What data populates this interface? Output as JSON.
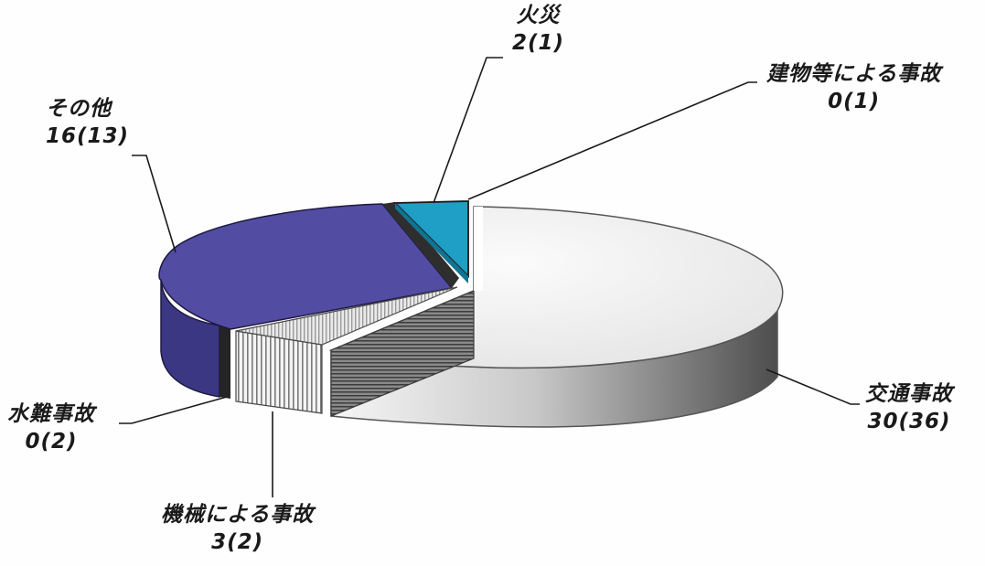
{
  "chart_data": {
    "type": "pie",
    "title": "",
    "slices": [
      {
        "label": "交通事故",
        "value": 30,
        "value_text": "30(36)",
        "prev": 36,
        "color": "#eeeeee"
      },
      {
        "label": "機械による事故",
        "value": 3,
        "value_text": "3(2)",
        "prev": 2,
        "color": "#dcdcdc"
      },
      {
        "label": "水難事故",
        "value": 0,
        "value_text": "0(2)",
        "prev": 2,
        "color": "#333333"
      },
      {
        "label": "その他",
        "value": 16,
        "value_text": "16(13)",
        "prev": 13,
        "color": "#514a9e"
      },
      {
        "label": "火災",
        "value": 2,
        "value_text": "2(1)",
        "prev": 1,
        "color": "#1f9fc6"
      },
      {
        "label": "建物等による事故",
        "value": 0,
        "value_text": "0(1)",
        "prev": 1,
        "color": "#333333"
      }
    ],
    "legend": "none",
    "style": "3d-exploded"
  }
}
